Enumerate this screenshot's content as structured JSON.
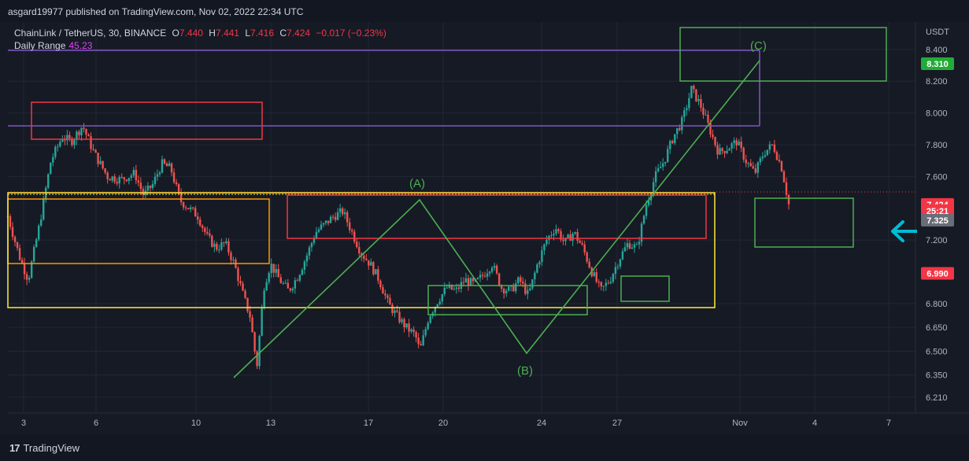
{
  "header": {
    "publish_text": "asgard19977 published on TradingView.com, Nov 02, 2022 22:34 UTC"
  },
  "legend": {
    "symbol": "ChainLink / TetherUS, 30, BINANCE",
    "o_label": "O",
    "o_val": "7.440",
    "h_label": "H",
    "h_val": "7.441",
    "l_label": "L",
    "l_val": "7.416",
    "c_label": "C",
    "c_val": "7.424",
    "change": "−0.017 (−0.23%)",
    "indicator_label": "Daily Range",
    "indicator_value": "45.23"
  },
  "footer": {
    "logo_text": "TradingView"
  },
  "colors": {
    "up": "#26a69a",
    "down": "#ef5350",
    "background": "#161a25",
    "green_box": "#4caf50",
    "red_box": "#f23645",
    "yellow_box": "#ffeb3b",
    "orange_box": "#ff9800",
    "purple_line": "#7e57c2",
    "arrow": "#00bcd4"
  },
  "chart_data": {
    "type": "candlestick",
    "currency_label": "USDT",
    "y_ticks": [
      "8.400",
      "8.200",
      "8.000",
      "7.800",
      "7.600",
      "7.200",
      "6.800",
      "6.650",
      "6.500",
      "6.350",
      "6.210"
    ],
    "y_tick_values": [
      8.4,
      8.2,
      8.0,
      7.8,
      7.6,
      7.2,
      6.8,
      6.65,
      6.5,
      6.35,
      6.21
    ],
    "x_ticks": [
      "3",
      "6",
      "10",
      "13",
      "17",
      "20",
      "24",
      "27",
      "Nov",
      "4",
      "7"
    ],
    "price_tags": [
      {
        "label": "8.310",
        "value": 8.31,
        "color": "#22ab36"
      },
      {
        "label": "7.424",
        "value": 7.424,
        "color": "#f23645"
      },
      {
        "label": "25:21",
        "value": 7.385,
        "color": "#f23645"
      },
      {
        "label": "7.325",
        "value": 7.325,
        "color": "#6a6d78"
      },
      {
        "label": "6.990",
        "value": 6.99,
        "color": "#f23645"
      }
    ],
    "annotations": [
      "(A)",
      "(B)",
      "(C)"
    ],
    "price_path": [
      [
        0,
        7.35
      ],
      [
        5,
        7.1
      ],
      [
        9,
        6.95
      ],
      [
        14,
        7.3
      ],
      [
        19,
        7.7
      ],
      [
        24,
        7.85
      ],
      [
        28,
        7.82
      ],
      [
        33,
        7.92
      ],
      [
        38,
        7.75
      ],
      [
        44,
        7.6
      ],
      [
        50,
        7.58
      ],
      [
        56,
        7.62
      ],
      [
        60,
        7.48
      ],
      [
        64,
        7.55
      ],
      [
        68,
        7.68
      ],
      [
        72,
        7.65
      ],
      [
        76,
        7.45
      ],
      [
        80,
        7.4
      ],
      [
        84,
        7.35
      ],
      [
        88,
        7.22
      ],
      [
        92,
        7.15
      ],
      [
        96,
        7.18
      ],
      [
        100,
        7.05
      ],
      [
        104,
        6.85
      ],
      [
        107,
        6.72
      ],
      [
        110,
        6.4
      ],
      [
        113,
        6.9
      ],
      [
        116,
        7.05
      ],
      [
        120,
        6.95
      ],
      [
        124,
        6.88
      ],
      [
        128,
        6.97
      ],
      [
        132,
        7.1
      ],
      [
        136,
        7.25
      ],
      [
        140,
        7.3
      ],
      [
        144,
        7.35
      ],
      [
        148,
        7.38
      ],
      [
        152,
        7.25
      ],
      [
        156,
        7.12
      ],
      [
        160,
        7.05
      ],
      [
        164,
        6.95
      ],
      [
        168,
        6.8
      ],
      [
        172,
        6.72
      ],
      [
        176,
        6.65
      ],
      [
        180,
        6.6
      ],
      [
        182,
        6.5
      ],
      [
        186,
        6.72
      ],
      [
        190,
        6.82
      ],
      [
        194,
        6.9
      ],
      [
        198,
        6.88
      ],
      [
        202,
        6.95
      ],
      [
        206,
        6.92
      ],
      [
        210,
        6.98
      ],
      [
        214,
        7.05
      ],
      [
        218,
        6.9
      ],
      [
        222,
        6.88
      ],
      [
        226,
        6.95
      ],
      [
        230,
        6.85
      ],
      [
        234,
        7.05
      ],
      [
        238,
        7.2
      ],
      [
        242,
        7.28
      ],
      [
        246,
        7.18
      ],
      [
        250,
        7.25
      ],
      [
        254,
        7.15
      ],
      [
        258,
        7.0
      ],
      [
        262,
        6.88
      ],
      [
        266,
        6.95
      ],
      [
        270,
        7.08
      ],
      [
        274,
        7.18
      ],
      [
        278,
        7.15
      ],
      [
        282,
        7.42
      ],
      [
        286,
        7.6
      ],
      [
        290,
        7.7
      ],
      [
        294,
        7.85
      ],
      [
        298,
        7.95
      ],
      [
        302,
        8.15
      ],
      [
        306,
        8.05
      ],
      [
        310,
        7.9
      ],
      [
        314,
        7.75
      ],
      [
        318,
        7.78
      ],
      [
        322,
        7.82
      ],
      [
        326,
        7.7
      ],
      [
        330,
        7.62
      ],
      [
        334,
        7.75
      ],
      [
        338,
        7.8
      ],
      [
        342,
        7.65
      ],
      [
        345,
        7.424
      ]
    ]
  }
}
